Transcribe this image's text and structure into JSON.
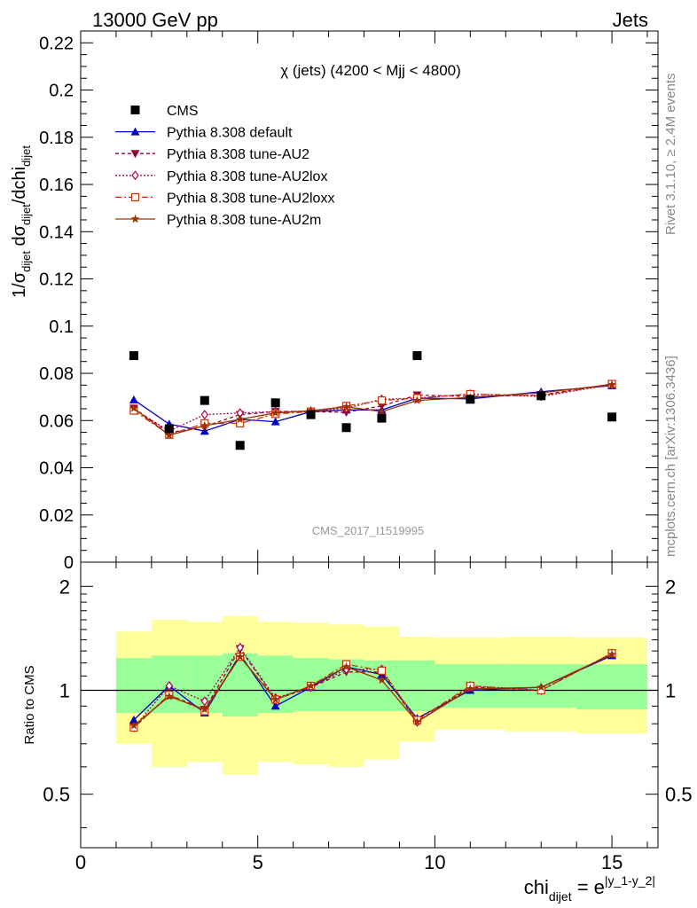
{
  "header": {
    "left": "13000 GeV pp",
    "right": "Jets"
  },
  "side": {
    "rivet": "Rivet 3.1.10, ≥ 2.4M events",
    "mcplots": "mcplots.cern.ch [arXiv:1306.3436]"
  },
  "watermark": "CMS_2017_I1519995",
  "colors": {
    "cms": "#000000",
    "default": "#0000cc",
    "au2": "#990033",
    "au2lox": "#aa0055",
    "au2loxx": "#cc3300",
    "au2m": "#993300",
    "band_inner": "#99ff99",
    "band_outer": "#ffff99"
  },
  "chart_data": [
    {
      "type": "scatter",
      "title": "χ (jets) (4200 < Mjj < 4800)",
      "ylabel": {
        "prefix": "1/σ",
        "sub1": "dijet",
        "mid": " dσ",
        "sub2": "dijet",
        "tail": "/dchi",
        "sub3": "dijet"
      },
      "xlim": [
        0,
        16.3
      ],
      "ylim": [
        0,
        0.225
      ],
      "yticks": [
        "0",
        "0.02",
        "0.04",
        "0.06",
        "0.08",
        "0.1",
        "0.12",
        "0.14",
        "0.16",
        "0.18",
        "0.2",
        "0.22"
      ],
      "ytick_values": [
        0,
        0.02,
        0.04,
        0.06,
        0.08,
        0.1,
        0.12,
        0.14,
        0.16,
        0.18,
        0.2,
        0.22
      ],
      "legend_position": "top-left",
      "x": [
        1.5,
        2.5,
        3.5,
        4.5,
        5.5,
        6.5,
        7.5,
        8.5,
        9.5,
        11,
        13,
        15
      ],
      "series": [
        {
          "name": "CMS",
          "values": [
            0.0875,
            0.0565,
            0.0685,
            0.0495,
            0.0675,
            0.0625,
            0.057,
            0.061,
            0.0875,
            0.069,
            0.0705,
            0.0615
          ]
        },
        {
          "name": "Pythia 8.308 default",
          "values": [
            0.0688,
            0.0585,
            0.0555,
            0.0605,
            0.0595,
            0.0638,
            0.0645,
            0.0645,
            0.0695,
            0.0692,
            0.0722,
            0.0748
          ]
        },
        {
          "name": "Pythia 8.308 tune-AU2",
          "values": [
            0.0652,
            0.0548,
            0.0575,
            0.0625,
            0.0638,
            0.0638,
            0.0635,
            0.0662,
            0.0708,
            0.0702,
            0.0708,
            0.0755
          ]
        },
        {
          "name": "Pythia 8.308 tune-AU2lox",
          "values": [
            0.0648,
            0.0555,
            0.0625,
            0.0632,
            0.0638,
            0.064,
            0.0652,
            0.069,
            0.0695,
            0.0712,
            0.0702,
            0.0752
          ]
        },
        {
          "name": "Pythia 8.308 tune-AU2loxx",
          "values": [
            0.0642,
            0.054,
            0.0588,
            0.0588,
            0.0628,
            0.0638,
            0.0662,
            0.0685,
            0.0695,
            0.0712,
            0.0705,
            0.0755
          ]
        },
        {
          "name": "Pythia 8.308 tune-AU2m",
          "values": [
            0.0652,
            0.0538,
            0.0578,
            0.0605,
            0.0632,
            0.0642,
            0.0658,
            0.0638,
            0.0685,
            0.0698,
            0.0718,
            0.0752
          ]
        }
      ]
    },
    {
      "type": "line",
      "ylabel": "Ratio to CMS",
      "xlabel": {
        "base": "chi",
        "sub": "dijet",
        "eq": " = e",
        "sup": "|y_1-y_2|"
      },
      "xlim": [
        0,
        16.3
      ],
      "ylim": [
        0.35,
        2.35
      ],
      "log_y": true,
      "xticks": [
        "0",
        "5",
        "10",
        "15"
      ],
      "xtick_values": [
        0,
        5,
        10,
        15
      ],
      "yticks": [
        "0.5",
        "1",
        "2"
      ],
      "ytick_values": [
        0.5,
        1,
        2
      ],
      "bins": [
        [
          1,
          2
        ],
        [
          2,
          3
        ],
        [
          3,
          4
        ],
        [
          4,
          5
        ],
        [
          5,
          6
        ],
        [
          6,
          7
        ],
        [
          7,
          8
        ],
        [
          8,
          9
        ],
        [
          9,
          10
        ],
        [
          10,
          12
        ],
        [
          12,
          14
        ],
        [
          14,
          16
        ]
      ],
      "band_inner": [
        [
          0.86,
          1.24
        ],
        [
          0.86,
          1.26
        ],
        [
          0.86,
          1.26
        ],
        [
          0.84,
          1.28
        ],
        [
          0.86,
          1.26
        ],
        [
          0.87,
          1.24
        ],
        [
          0.87,
          1.23
        ],
        [
          0.87,
          1.22
        ],
        [
          0.87,
          1.22
        ],
        [
          0.89,
          1.19
        ],
        [
          0.89,
          1.19
        ],
        [
          0.88,
          1.19
        ]
      ],
      "band_outer": [
        [
          0.7,
          1.48
        ],
        [
          0.6,
          1.6
        ],
        [
          0.62,
          1.58
        ],
        [
          0.57,
          1.64
        ],
        [
          0.62,
          1.58
        ],
        [
          0.61,
          1.57
        ],
        [
          0.6,
          1.55
        ],
        [
          0.63,
          1.53
        ],
        [
          0.71,
          1.43
        ],
        [
          0.77,
          1.42
        ],
        [
          0.76,
          1.43
        ],
        [
          0.75,
          1.42
        ]
      ],
      "x": [
        1.5,
        2.5,
        3.5,
        4.5,
        5.5,
        6.5,
        7.5,
        8.5,
        9.5,
        11,
        13,
        15
      ],
      "series": [
        {
          "name": "Pythia 8.308 default",
          "values": [
            0.82,
            1.03,
            0.86,
            1.27,
            0.9,
            1.02,
            1.17,
            1.11,
            0.83,
            1.0,
            1.02,
            1.26
          ]
        },
        {
          "name": "Pythia 8.308 tune-AU2",
          "values": [
            0.78,
            0.97,
            0.88,
            1.32,
            0.94,
            1.02,
            1.13,
            1.13,
            0.81,
            1.02,
            1.0,
            1.28
          ]
        },
        {
          "name": "Pythia 8.308 tune-AU2lox",
          "values": [
            0.78,
            1.03,
            0.93,
            1.33,
            0.95,
            1.02,
            1.15,
            1.15,
            0.81,
            1.03,
            1.0,
            1.28
          ]
        },
        {
          "name": "Pythia 8.308 tune-AU2loxx",
          "values": [
            0.78,
            0.97,
            0.87,
            1.25,
            0.94,
            1.03,
            1.19,
            1.14,
            0.82,
            1.03,
            1.0,
            1.28
          ]
        },
        {
          "name": "Pythia 8.308 tune-AU2m",
          "values": [
            0.79,
            0.96,
            0.88,
            1.25,
            0.94,
            1.03,
            1.17,
            1.07,
            0.81,
            1.01,
            1.02,
            1.27
          ]
        }
      ]
    }
  ]
}
